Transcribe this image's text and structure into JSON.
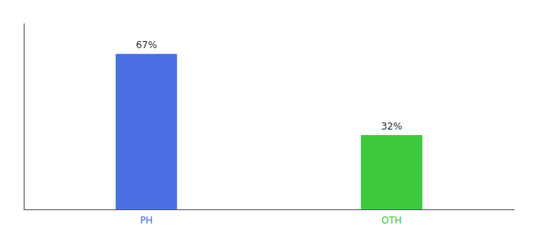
{
  "chart_data": {
    "type": "bar",
    "categories": [
      "PH",
      "OTH"
    ],
    "values": [
      67,
      32
    ],
    "value_labels": [
      "67%",
      "32%"
    ],
    "colors": [
      "#4A6FE3",
      "#3CC93C"
    ],
    "ylim": [
      0,
      80
    ],
    "data_labels": true,
    "tick_labels": "x",
    "grid": false
  }
}
